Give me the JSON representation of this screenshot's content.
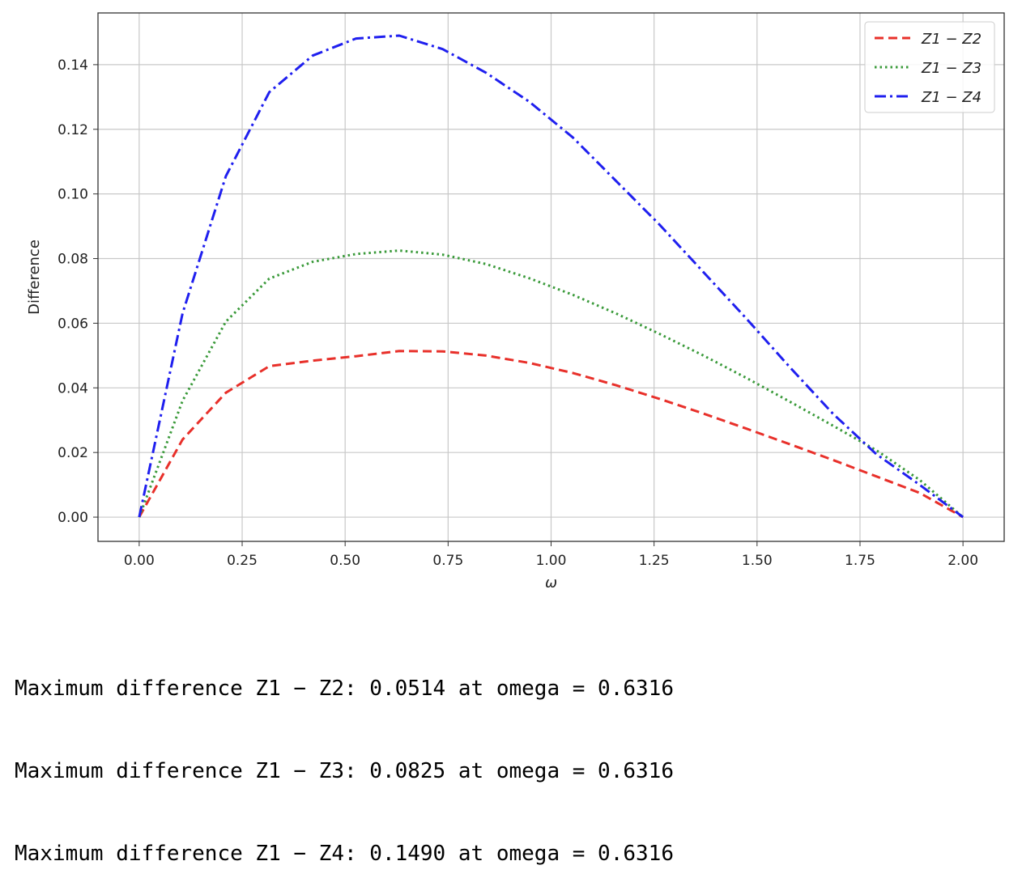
{
  "chart_data": {
    "type": "line",
    "title": "",
    "xlabel": "ω",
    "ylabel": "Difference",
    "xlim": [
      -0.1,
      2.1
    ],
    "ylim": [
      -0.0075,
      0.156
    ],
    "xticks": [
      "0.00",
      "0.25",
      "0.50",
      "0.75",
      "1.00",
      "1.25",
      "1.50",
      "1.75",
      "2.00"
    ],
    "yticks": [
      "0.00",
      "0.02",
      "0.04",
      "0.06",
      "0.08",
      "0.10",
      "0.12",
      "0.14"
    ],
    "grid": true,
    "legend_position": "top-right",
    "x": [
      0.0,
      0.1053,
      0.2105,
      0.3158,
      0.4211,
      0.5263,
      0.6316,
      0.7368,
      0.8421,
      0.9474,
      1.0526,
      1.1579,
      1.2632,
      1.3684,
      1.4737,
      1.5789,
      1.6842,
      1.7895,
      1.8947,
      2.0
    ],
    "series": [
      {
        "name": "Z1 − Z2",
        "color": "#e8302a",
        "dash": "dashed",
        "values": [
          0.0,
          0.024,
          0.0385,
          0.0467,
          0.0484,
          0.0498,
          0.0514,
          0.0513,
          0.05,
          0.0477,
          0.0446,
          0.0408,
          0.0366,
          0.0321,
          0.0274,
          0.0226,
          0.0177,
          0.0126,
          0.0075,
          0.0
        ]
      },
      {
        "name": "Z1 − Z3",
        "color": "#3a9a3a",
        "dash": "dotted",
        "values": [
          0.0,
          0.036,
          0.0605,
          0.0738,
          0.079,
          0.0814,
          0.0825,
          0.0812,
          0.0783,
          0.0739,
          0.0688,
          0.063,
          0.0567,
          0.0501,
          0.0431,
          0.0358,
          0.0283,
          0.0207,
          0.0115,
          0.0
        ]
      },
      {
        "name": "Z1 − Z4",
        "color": "#1f1fef",
        "dash": "dashdot",
        "values": [
          0.0,
          0.063,
          0.1055,
          0.1315,
          0.1428,
          0.1481,
          0.149,
          0.1448,
          0.1375,
          0.1285,
          0.1175,
          0.104,
          0.0905,
          0.076,
          0.0615,
          0.0465,
          0.032,
          0.0195,
          0.01,
          0.0
        ]
      }
    ]
  },
  "output_lines": [
    "Maximum difference Z1 − Z2: 0.0514 at omega = 0.6316",
    "Maximum difference Z1 − Z3: 0.0825 at omega = 0.6316",
    "Maximum difference Z1 − Z4: 0.1490 at omega = 0.6316"
  ]
}
